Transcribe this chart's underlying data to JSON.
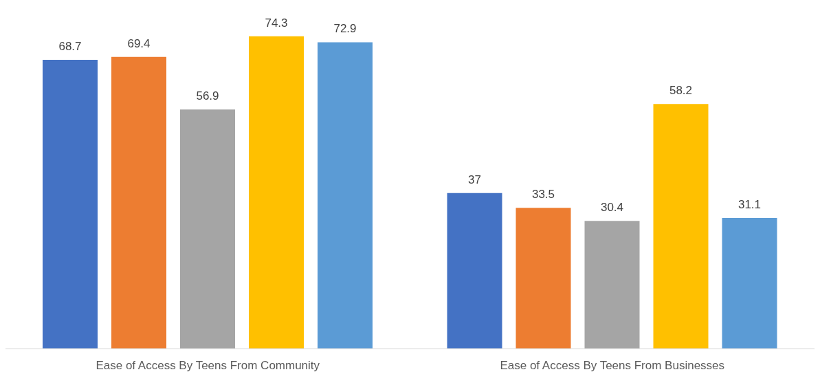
{
  "chart_data": {
    "type": "bar",
    "categories": [
      "Ease of Access By Teens From Community",
      "Ease of Access By Teens From Businesses"
    ],
    "series": [
      {
        "color": "#4472c4",
        "values": [
          68.7,
          37
        ]
      },
      {
        "color": "#ed7d31",
        "values": [
          69.4,
          33.5
        ]
      },
      {
        "color": "#a5a5a5",
        "values": [
          56.9,
          30.4
        ]
      },
      {
        "color": "#ffc000",
        "values": [
          74.3,
          58.2
        ]
      },
      {
        "color": "#5b9bd5",
        "values": [
          72.9,
          31.1
        ]
      }
    ],
    "data_labels": true
  }
}
